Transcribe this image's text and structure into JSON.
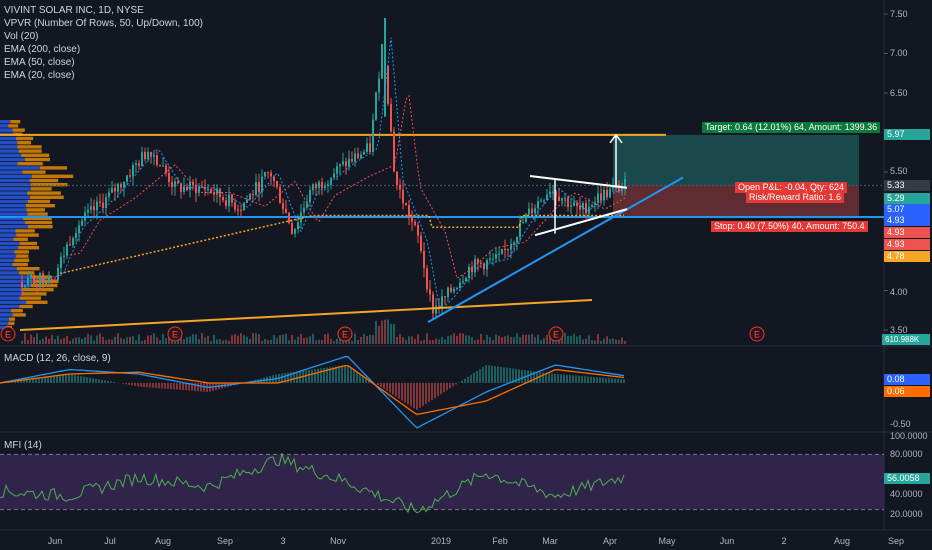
{
  "legend": {
    "title": "VIVINT SOLAR INC, 1D, NYSE",
    "lines": [
      "VPVR (Number Of Rows, 50, Up/Down, 100)",
      "Vol (20)",
      "EMA (200, close)",
      "EMA (50, close)",
      "EMA (20, close)"
    ]
  },
  "macd_label": "MACD (12, 26, close, 9)",
  "mfi_label": "MFI (14)",
  "price_axis": [
    "7.50",
    "7.00",
    "6.50",
    "5.50",
    "4.00",
    "3.50"
  ],
  "macd_axis": [
    "-0.50"
  ],
  "mfi_axis": [
    "100.0000",
    "80.0000",
    "40.0000",
    "20.0000"
  ],
  "x_axis": [
    "Jun",
    "Jul",
    "Aug",
    "Sep",
    "3",
    "Nov",
    "2019",
    "Feb",
    "Mar",
    "Apr",
    "May",
    "Jun",
    "2",
    "Aug",
    "Sep"
  ],
  "badges": {
    "target_price": "5.97",
    "last": "5.33",
    "b1": "5.29",
    "b2": "5.07",
    "b3": "4.93",
    "b4": "4.93",
    "b5": "4.93",
    "b6": "4.78",
    "volume": "610.988K",
    "macd1": "0.08",
    "macd2": "0.06",
    "mfi": "56.0058"
  },
  "position": {
    "target": "Target: 0.64 (12.01%) 64, Amount: 1399.36",
    "open_pnl": "Open P&L: -0.04, Qty: 624",
    "risk_reward": "Risk/Reward Ratio: 1.6",
    "stop": "Stop: 0.40 (7.50%) 40, Amount: 750.4"
  },
  "earnings_marker": "E",
  "colors": {
    "up": "#26a69a",
    "down": "#ef5350",
    "orange_line": "#f5a623",
    "blue_line": "#2196f3",
    "vpvr_up": "#2962ff",
    "vpvr_down": "#ff9800",
    "macd": "#2196f3",
    "signal": "#ff6d00",
    "mfi": "#4caf50",
    "mfi_band": "#4a2f6b"
  },
  "chart_data": [
    {
      "type": "candlestick",
      "title": "VIVINT SOLAR INC, 1D, NYSE",
      "x": [
        "Jun",
        "Jul",
        "Aug",
        "Sep",
        "3",
        "Nov",
        "2019",
        "Feb",
        "Mar",
        "Apr"
      ],
      "close": [
        4.1,
        5.2,
        5.6,
        5.2,
        5.1,
        5.7,
        3.9,
        4.5,
        5.2,
        5.33
      ],
      "high": [
        4.4,
        5.9,
        6.0,
        5.4,
        5.6,
        7.4,
        4.2,
        4.8,
        5.45,
        5.35
      ],
      "low": [
        3.8,
        4.4,
        5.2,
        5.0,
        4.7,
        4.9,
        3.62,
        4.1,
        4.7,
        5.0
      ],
      "ylim": [
        3.5,
        7.75
      ],
      "levels": {
        "resistance": 5.97,
        "support": 4.93,
        "current": 5.33
      }
    },
    {
      "type": "line",
      "title": "MACD (12, 26, close, 9)",
      "series": [
        {
          "name": "MACD",
          "values": [
            0.0,
            0.15,
            0.1,
            -0.05,
            0.05,
            0.3,
            -0.5,
            -0.1,
            0.2,
            0.08
          ]
        },
        {
          "name": "Signal",
          "values": [
            0.0,
            0.1,
            0.12,
            0.0,
            0.0,
            0.2,
            -0.35,
            -0.2,
            0.15,
            0.06
          ]
        }
      ]
    },
    {
      "type": "line",
      "title": "MFI (14)",
      "series": [
        {
          "name": "MFI",
          "values": [
            40,
            35,
            55,
            45,
            75,
            50,
            18,
            60,
            35,
            56.0058
          ]
        }
      ],
      "ylim": [
        0,
        100
      ]
    }
  ]
}
